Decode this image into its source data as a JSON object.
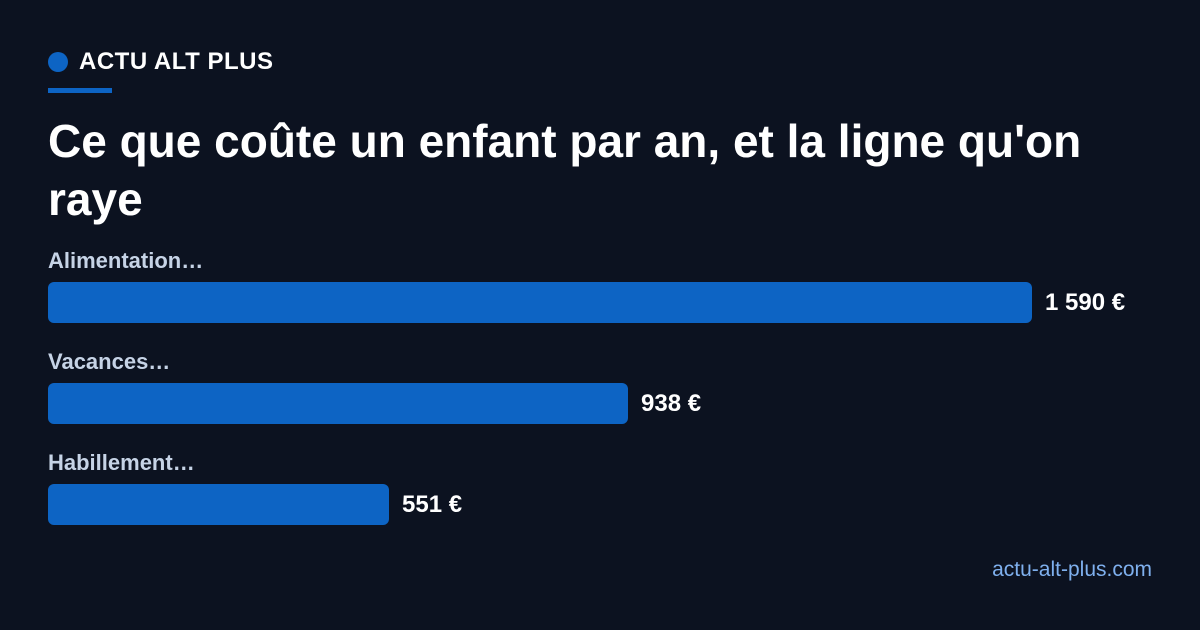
{
  "brand": {
    "name": "ACTU ALT PLUS"
  },
  "chart_data": {
    "type": "bar",
    "orientation": "horizontal",
    "title": "Ce que coûte un enfant par an, et la ligne qu'on raye",
    "categories": [
      "Alimentation…",
      "Vacances…",
      "Habillement…"
    ],
    "values": [
      1590,
      938,
      551
    ],
    "value_labels": [
      "1 590 €",
      "938 €",
      "551 €"
    ],
    "unit": "€",
    "bar_color": "#0d64c4",
    "grid": false,
    "legend": "none"
  },
  "footer": {
    "url": "actu-alt-plus.com"
  },
  "colors": {
    "background": "#0c1220",
    "accent": "#0d64c4",
    "link": "#7fb0ee"
  }
}
